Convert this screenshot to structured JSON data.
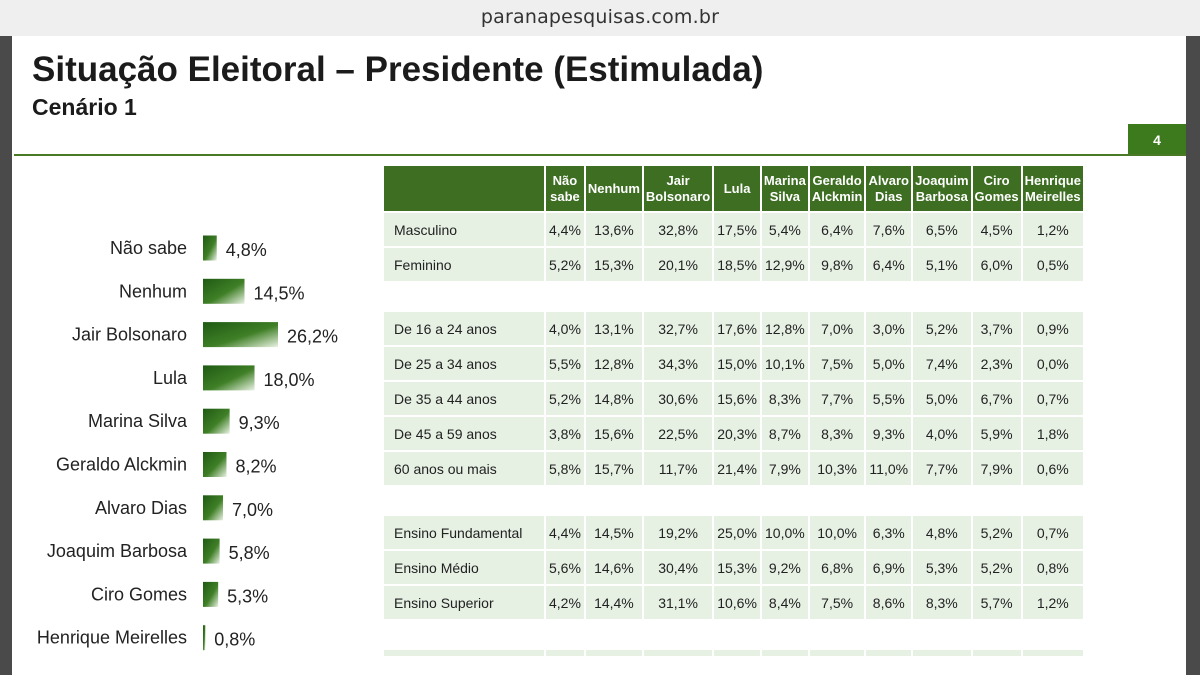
{
  "browser": {
    "url": "paranapesquisas.com.br"
  },
  "slide": {
    "title": "Situação Eleitoral – Presidente (Estimulada)",
    "subtitle": "Cenário 1",
    "page_number": "4"
  },
  "colors": {
    "accent": "#3d6e22",
    "bar": "#2f6b1e",
    "cell": "#e6f1e4"
  },
  "chart_data": [
    {
      "type": "bar",
      "orientation": "horizontal",
      "categories": [
        "Não sabe",
        "Nenhum",
        "Jair Bolsonaro",
        "Lula",
        "Marina Silva",
        "Geraldo Alckmin",
        "Alvaro Dias",
        "Joaquim Barbosa",
        "Ciro Gomes",
        "Henrique Meirelles"
      ],
      "values": [
        4.8,
        14.5,
        26.2,
        18.0,
        9.3,
        8.2,
        7.0,
        5.8,
        5.3,
        0.8
      ],
      "value_labels": [
        "4,8%",
        "14,5%",
        "26,2%",
        "18,0%",
        "9,3%",
        "8,2%",
        "7,0%",
        "5,8%",
        "5,3%",
        "0,8%"
      ],
      "unit": "%",
      "grid": false,
      "legend": "none"
    },
    {
      "type": "table",
      "columns": [
        "Não\nsabe",
        "Nenhum",
        "Jair\nBolsonaro",
        "Lula",
        "Marina\nSilva",
        "Geraldo\nAlckmin",
        "Alvaro\nDias",
        "Joaquim\nBarbosa",
        "Ciro\nGomes",
        "Henrique\nMeirelles"
      ],
      "groups": [
        [
          {
            "label": "Masculino",
            "values": [
              "4,4%",
              "13,6%",
              "32,8%",
              "17,5%",
              "5,4%",
              "6,4%",
              "7,6%",
              "6,5%",
              "4,5%",
              "1,2%"
            ]
          },
          {
            "label": "Feminino",
            "values": [
              "5,2%",
              "15,3%",
              "20,1%",
              "18,5%",
              "12,9%",
              "9,8%",
              "6,4%",
              "5,1%",
              "6,0%",
              "0,5%"
            ]
          }
        ],
        [
          {
            "label": "De 16 a 24 anos",
            "values": [
              "4,0%",
              "13,1%",
              "32,7%",
              "17,6%",
              "12,8%",
              "7,0%",
              "3,0%",
              "5,2%",
              "3,7%",
              "0,9%"
            ]
          },
          {
            "label": "De 25 a 34 anos",
            "values": [
              "5,5%",
              "12,8%",
              "34,3%",
              "15,0%",
              "10,1%",
              "7,5%",
              "5,0%",
              "7,4%",
              "2,3%",
              "0,0%"
            ]
          },
          {
            "label": "De 35 a 44 anos",
            "values": [
              "5,2%",
              "14,8%",
              "30,6%",
              "15,6%",
              "8,3%",
              "7,7%",
              "5,5%",
              "5,0%",
              "6,7%",
              "0,7%"
            ]
          },
          {
            "label": "De 45 a 59 anos",
            "values": [
              "3,8%",
              "15,6%",
              "22,5%",
              "20,3%",
              "8,7%",
              "8,3%",
              "9,3%",
              "4,0%",
              "5,9%",
              "1,8%"
            ]
          },
          {
            "label": "60 anos ou mais",
            "values": [
              "5,8%",
              "15,7%",
              "11,7%",
              "21,4%",
              "7,9%",
              "10,3%",
              "11,0%",
              "7,7%",
              "7,9%",
              "0,6%"
            ]
          }
        ],
        [
          {
            "label": "Ensino Fundamental",
            "values": [
              "4,4%",
              "14,5%",
              "19,2%",
              "25,0%",
              "10,0%",
              "10,0%",
              "6,3%",
              "4,8%",
              "5,2%",
              "0,7%"
            ]
          },
          {
            "label": "Ensino Médio",
            "values": [
              "5,6%",
              "14,6%",
              "30,4%",
              "15,3%",
              "9,2%",
              "6,8%",
              "6,9%",
              "5,3%",
              "5,2%",
              "0,8%"
            ]
          },
          {
            "label": "Ensino Superior",
            "values": [
              "4,2%",
              "14,4%",
              "31,1%",
              "10,6%",
              "8,4%",
              "7,5%",
              "8,6%",
              "8,3%",
              "5,7%",
              "1,2%"
            ]
          }
        ]
      ]
    }
  ]
}
